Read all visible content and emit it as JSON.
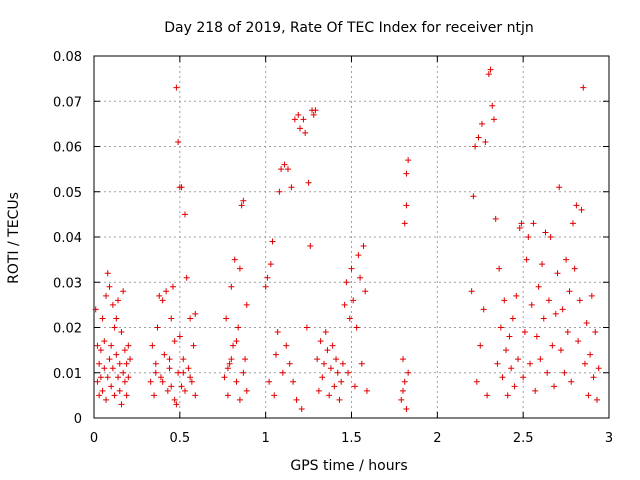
{
  "chart_data": {
    "type": "scatter",
    "title": "Day 218 of 2019, Rate Of TEC Index for receiver ntjn",
    "xlabel": "GPS time / hours",
    "ylabel": "ROTI / TECUs",
    "xlim": [
      0,
      3
    ],
    "ylim": [
      0,
      0.08
    ],
    "xticks": [
      0,
      0.5,
      1,
      1.5,
      2,
      2.5,
      3
    ],
    "xtick_labels": [
      "0",
      "0.5",
      "1",
      "1.5",
      "2",
      "2.5",
      "3"
    ],
    "yticks": [
      0,
      0.01,
      0.02,
      0.03,
      0.04,
      0.05,
      0.06,
      0.07,
      0.08
    ],
    "ytick_labels": [
      "0",
      "0.01",
      "0.02",
      "0.03",
      "0.04",
      "0.05",
      "0.06",
      "0.07",
      "0.08"
    ],
    "grid": true,
    "marker": "plus",
    "color": "#e00000",
    "series": [
      {
        "name": "ROTI",
        "points": [
          [
            0.01,
            0.024
          ],
          [
            0.02,
            0.016
          ],
          [
            0.02,
            0.008
          ],
          [
            0.03,
            0.012
          ],
          [
            0.03,
            0.005
          ],
          [
            0.04,
            0.015
          ],
          [
            0.04,
            0.009
          ],
          [
            0.05,
            0.022
          ],
          [
            0.05,
            0.006
          ],
          [
            0.06,
            0.011
          ],
          [
            0.06,
            0.017
          ],
          [
            0.07,
            0.027
          ],
          [
            0.07,
            0.004
          ],
          [
            0.08,
            0.032
          ],
          [
            0.08,
            0.009
          ],
          [
            0.09,
            0.013
          ],
          [
            0.09,
            0.029
          ],
          [
            0.1,
            0.007
          ],
          [
            0.1,
            0.016
          ],
          [
            0.11,
            0.025
          ],
          [
            0.11,
            0.011
          ],
          [
            0.12,
            0.02
          ],
          [
            0.12,
            0.005
          ],
          [
            0.13,
            0.022
          ],
          [
            0.13,
            0.014
          ],
          [
            0.14,
            0.009
          ],
          [
            0.14,
            0.026
          ],
          [
            0.15,
            0.012
          ],
          [
            0.15,
            0.006
          ],
          [
            0.16,
            0.019
          ],
          [
            0.16,
            0.003
          ],
          [
            0.17,
            0.01
          ],
          [
            0.17,
            0.028
          ],
          [
            0.18,
            0.008
          ],
          [
            0.18,
            0.015
          ],
          [
            0.19,
            0.012
          ],
          [
            0.19,
            0.005
          ],
          [
            0.2,
            0.016
          ],
          [
            0.2,
            0.009
          ],
          [
            0.21,
            0.013
          ],
          [
            0.33,
            0.008
          ],
          [
            0.34,
            0.016
          ],
          [
            0.35,
            0.005
          ],
          [
            0.36,
            0.012
          ],
          [
            0.37,
            0.02
          ],
          [
            0.38,
            0.027
          ],
          [
            0.39,
            0.009
          ],
          [
            0.4,
            0.026
          ],
          [
            0.41,
            0.014
          ],
          [
            0.42,
            0.028
          ],
          [
            0.43,
            0.006
          ],
          [
            0.44,
            0.011
          ],
          [
            0.45,
            0.022
          ],
          [
            0.46,
            0.029
          ],
          [
            0.47,
            0.004
          ],
          [
            0.47,
            0.017
          ],
          [
            0.48,
            0.073
          ],
          [
            0.48,
            0.003
          ],
          [
            0.49,
            0.061
          ],
          [
            0.49,
            0.01
          ],
          [
            0.5,
            0.051
          ],
          [
            0.5,
            0.018
          ],
          [
            0.51,
            0.007
          ],
          [
            0.51,
            0.051
          ],
          [
            0.52,
            0.013
          ],
          [
            0.53,
            0.006
          ],
          [
            0.53,
            0.045
          ],
          [
            0.54,
            0.031
          ],
          [
            0.55,
            0.011
          ],
          [
            0.56,
            0.022
          ],
          [
            0.57,
            0.008
          ],
          [
            0.58,
            0.016
          ],
          [
            0.59,
            0.023
          ],
          [
            0.59,
            0.005
          ],
          [
            0.4,
            0.008
          ],
          [
            0.44,
            0.013
          ],
          [
            0.52,
            0.01
          ],
          [
            0.56,
            0.009
          ],
          [
            0.36,
            0.01
          ],
          [
            0.45,
            0.007
          ],
          [
            0.76,
            0.009
          ],
          [
            0.77,
            0.022
          ],
          [
            0.78,
            0.005
          ],
          [
            0.79,
            0.012
          ],
          [
            0.8,
            0.029
          ],
          [
            0.81,
            0.016
          ],
          [
            0.82,
            0.035
          ],
          [
            0.83,
            0.008
          ],
          [
            0.84,
            0.02
          ],
          [
            0.85,
            0.033
          ],
          [
            0.85,
            0.004
          ],
          [
            0.86,
            0.047
          ],
          [
            0.87,
            0.048
          ],
          [
            0.87,
            0.01
          ],
          [
            0.88,
            0.013
          ],
          [
            0.89,
            0.006
          ],
          [
            0.89,
            0.025
          ],
          [
            0.8,
            0.013
          ],
          [
            0.83,
            0.017
          ],
          [
            0.78,
            0.011
          ],
          [
            1.0,
            0.029
          ],
          [
            1.01,
            0.031
          ],
          [
            1.02,
            0.008
          ],
          [
            1.03,
            0.034
          ],
          [
            1.04,
            0.039
          ],
          [
            1.05,
            0.005
          ],
          [
            1.06,
            0.014
          ],
          [
            1.07,
            0.019
          ],
          [
            1.08,
            0.05
          ],
          [
            1.09,
            0.055
          ],
          [
            1.1,
            0.01
          ],
          [
            1.11,
            0.056
          ],
          [
            1.12,
            0.016
          ],
          [
            1.13,
            0.055
          ],
          [
            1.14,
            0.012
          ],
          [
            1.15,
            0.051
          ],
          [
            1.16,
            0.008
          ],
          [
            1.17,
            0.066
          ],
          [
            1.18,
            0.004
          ],
          [
            1.19,
            0.067
          ],
          [
            1.2,
            0.064
          ],
          [
            1.21,
            0.002
          ],
          [
            1.22,
            0.066
          ],
          [
            1.23,
            0.063
          ],
          [
            1.24,
            0.02
          ],
          [
            1.25,
            0.052
          ],
          [
            1.26,
            0.038
          ],
          [
            1.27,
            0.068
          ],
          [
            1.28,
            0.067
          ],
          [
            1.29,
            0.068
          ],
          [
            1.3,
            0.013
          ],
          [
            1.31,
            0.006
          ],
          [
            1.32,
            0.017
          ],
          [
            1.33,
            0.009
          ],
          [
            1.34,
            0.012
          ],
          [
            1.35,
            0.019
          ],
          [
            1.36,
            0.015
          ],
          [
            1.37,
            0.005
          ],
          [
            1.38,
            0.011
          ],
          [
            1.39,
            0.016
          ],
          [
            1.4,
            0.007
          ],
          [
            1.41,
            0.013
          ],
          [
            1.42,
            0.01
          ],
          [
            1.43,
            0.004
          ],
          [
            1.44,
            0.008
          ],
          [
            1.45,
            0.012
          ],
          [
            1.46,
            0.025
          ],
          [
            1.47,
            0.03
          ],
          [
            1.48,
            0.01
          ],
          [
            1.49,
            0.022
          ],
          [
            1.5,
            0.033
          ],
          [
            1.51,
            0.026
          ],
          [
            1.52,
            0.007
          ],
          [
            1.53,
            0.02
          ],
          [
            1.54,
            0.036
          ],
          [
            1.55,
            0.031
          ],
          [
            1.56,
            0.012
          ],
          [
            1.57,
            0.038
          ],
          [
            1.58,
            0.028
          ],
          [
            1.59,
            0.006
          ],
          [
            1.79,
            0.004
          ],
          [
            1.8,
            0.013
          ],
          [
            1.81,
            0.043
          ],
          [
            1.81,
            0.008
          ],
          [
            1.82,
            0.054
          ],
          [
            1.82,
            0.047
          ],
          [
            1.83,
            0.057
          ],
          [
            1.83,
            0.01
          ],
          [
            1.82,
            0.002
          ],
          [
            1.8,
            0.006
          ],
          [
            2.2,
            0.028
          ],
          [
            2.21,
            0.049
          ],
          [
            2.22,
            0.06
          ],
          [
            2.23,
            0.008
          ],
          [
            2.24,
            0.062
          ],
          [
            2.25,
            0.016
          ],
          [
            2.26,
            0.065
          ],
          [
            2.27,
            0.024
          ],
          [
            2.28,
            0.061
          ],
          [
            2.29,
            0.005
          ],
          [
            2.3,
            0.076
          ],
          [
            2.31,
            0.077
          ],
          [
            2.32,
            0.069
          ],
          [
            2.33,
            0.066
          ],
          [
            2.34,
            0.044
          ],
          [
            2.35,
            0.012
          ],
          [
            2.36,
            0.033
          ],
          [
            2.37,
            0.02
          ],
          [
            2.38,
            0.009
          ],
          [
            2.39,
            0.026
          ],
          [
            2.4,
            0.015
          ],
          [
            2.41,
            0.005
          ],
          [
            2.42,
            0.018
          ],
          [
            2.43,
            0.011
          ],
          [
            2.44,
            0.022
          ],
          [
            2.45,
            0.007
          ],
          [
            2.46,
            0.027
          ],
          [
            2.47,
            0.013
          ],
          [
            2.48,
            0.042
          ],
          [
            2.49,
            0.043
          ],
          [
            2.5,
            0.009
          ],
          [
            2.51,
            0.019
          ],
          [
            2.52,
            0.035
          ],
          [
            2.53,
            0.04
          ],
          [
            2.54,
            0.012
          ],
          [
            2.55,
            0.025
          ],
          [
            2.56,
            0.043
          ],
          [
            2.57,
            0.006
          ],
          [
            2.58,
            0.018
          ],
          [
            2.59,
            0.029
          ],
          [
            2.6,
            0.013
          ],
          [
            2.61,
            0.034
          ],
          [
            2.62,
            0.022
          ],
          [
            2.63,
            0.041
          ],
          [
            2.64,
            0.01
          ],
          [
            2.65,
            0.026
          ],
          [
            2.66,
            0.04
          ],
          [
            2.67,
            0.016
          ],
          [
            2.68,
            0.007
          ],
          [
            2.69,
            0.023
          ],
          [
            2.7,
            0.032
          ],
          [
            2.71,
            0.051
          ],
          [
            2.72,
            0.015
          ],
          [
            2.73,
            0.024
          ],
          [
            2.74,
            0.01
          ],
          [
            2.75,
            0.035
          ],
          [
            2.76,
            0.019
          ],
          [
            2.77,
            0.028
          ],
          [
            2.78,
            0.008
          ],
          [
            2.79,
            0.043
          ],
          [
            2.8,
            0.033
          ],
          [
            2.81,
            0.047
          ],
          [
            2.82,
            0.017
          ],
          [
            2.83,
            0.026
          ],
          [
            2.84,
            0.046
          ],
          [
            2.85,
            0.073
          ],
          [
            2.86,
            0.012
          ],
          [
            2.87,
            0.021
          ],
          [
            2.88,
            0.005
          ],
          [
            2.89,
            0.014
          ],
          [
            2.9,
            0.027
          ],
          [
            2.91,
            0.009
          ],
          [
            2.92,
            0.019
          ],
          [
            2.93,
            0.004
          ],
          [
            2.94,
            0.011
          ]
        ]
      }
    ]
  }
}
